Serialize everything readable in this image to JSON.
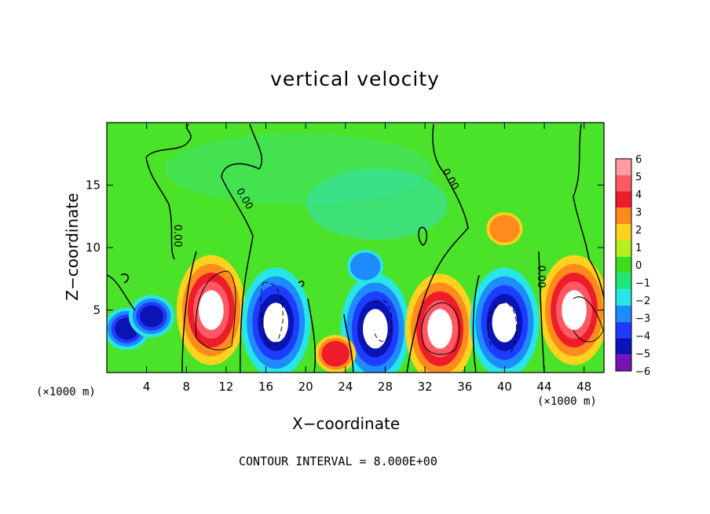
{
  "chart_data": {
    "type": "heatmap",
    "title": "vertical velocity",
    "xlabel": "X−coordinate",
    "ylabel": "Z−coordinate",
    "x_unit_left": "(×1000 m)",
    "x_unit_right": "(×1000 m)",
    "footnote": "CONTOUR INTERVAL = 8.000E+00",
    "xlim": [
      0,
      50
    ],
    "ylim": [
      0,
      20
    ],
    "x_ticks": [
      4,
      8,
      12,
      16,
      20,
      24,
      28,
      32,
      36,
      40,
      44,
      48
    ],
    "y_ticks": [
      5,
      10,
      15
    ],
    "contour_labels": [
      "0.00",
      "0.00",
      "0.00",
      "0.00"
    ],
    "colorbar": {
      "ticks": [
        "6",
        "5",
        "4",
        "3",
        "2",
        "1",
        "0",
        "−1",
        "−2",
        "−3",
        "−4",
        "−5",
        "−6"
      ],
      "colors": [
        "#ff9aa0",
        "#ff5a64",
        "#ee1c2a",
        "#ff8a1e",
        "#ffd21e",
        "#b4f01e",
        "#3cdc1e",
        "#1ee67a",
        "#28e6e6",
        "#1e8cff",
        "#1e3cff",
        "#0a14b4",
        "#7814b4"
      ]
    },
    "cells": [
      {
        "x": 2.0,
        "z": 3.5,
        "w": -5
      },
      {
        "x": 4.5,
        "z": 4.5,
        "w": -5
      },
      {
        "x": 10.5,
        "z": 5.0,
        "w": 8
      },
      {
        "x": 17.0,
        "z": 4.0,
        "w": -8
      },
      {
        "x": 27.0,
        "z": 3.5,
        "w": -8
      },
      {
        "x": 33.5,
        "z": 3.5,
        "w": 8
      },
      {
        "x": 40.0,
        "z": 4.0,
        "w": -8
      },
      {
        "x": 47.0,
        "z": 5.0,
        "w": 8
      },
      {
        "x": 23.0,
        "z": 1.5,
        "w": 4
      },
      {
        "x": 40.0,
        "z": 11.5,
        "w": 3
      },
      {
        "x": 26.0,
        "z": 8.5,
        "w": -3
      }
    ]
  }
}
